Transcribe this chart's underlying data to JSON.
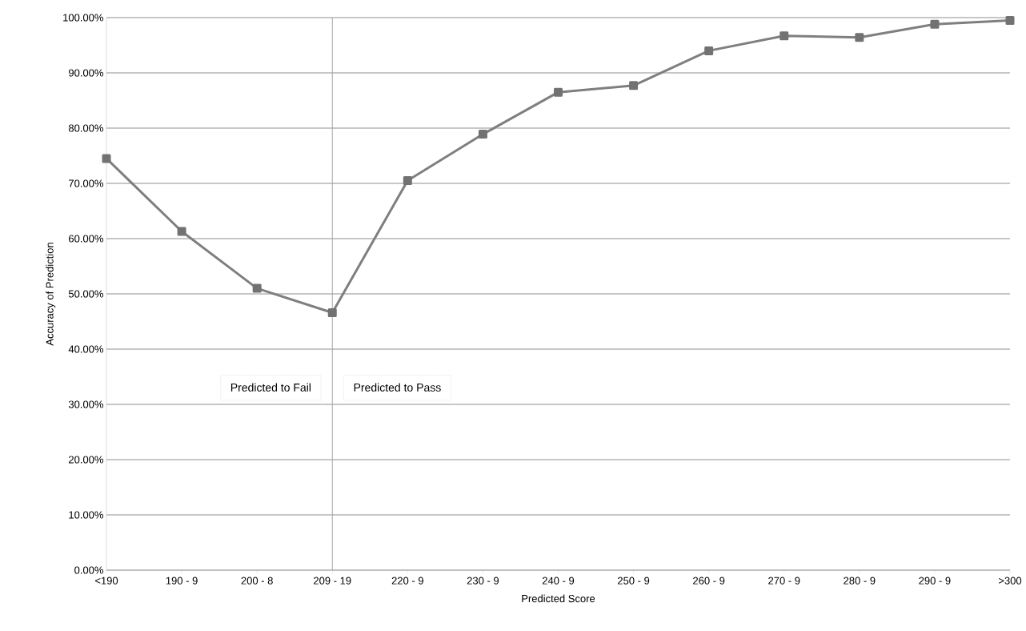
{
  "chart_data": {
    "type": "line",
    "xlabel": "Predicted Score",
    "ylabel": "Accuracy of Prediction",
    "categories": [
      "<190",
      "190 - 9",
      "200 - 8",
      "209 - 19",
      "220 - 9",
      "230 - 9",
      "240 - 9",
      "250 - 9",
      "260 - 9",
      "270 - 9",
      "280 - 9",
      "290 - 9",
      ">300"
    ],
    "series": [
      {
        "color": "#7f7f7f",
        "values": [
          74.5,
          61.3,
          51.0,
          46.6,
          70.5,
          78.9,
          86.5,
          87.7,
          94.0,
          96.7,
          96.4,
          98.8,
          99.5
        ]
      }
    ],
    "ylim": [
      0,
      100
    ],
    "yticks": [
      {
        "value": 0,
        "label": "0.00%"
      },
      {
        "value": 10,
        "label": "10.00%"
      },
      {
        "value": 20,
        "label": "20.00%"
      },
      {
        "value": 30,
        "label": "30.00%"
      },
      {
        "value": 40,
        "label": "40.00%"
      },
      {
        "value": 50,
        "label": "50.00%"
      },
      {
        "value": 60,
        "label": "60.00%"
      },
      {
        "value": 70,
        "label": "70.00%"
      },
      {
        "value": 80,
        "label": "80.00%"
      },
      {
        "value": 90,
        "label": "90.00%"
      },
      {
        "value": 100,
        "label": "100.00%"
      }
    ],
    "grid": "y",
    "marker": "square",
    "line_style": "solid",
    "ref_lines": [
      {
        "axis": "x",
        "value": "209 - 19",
        "color": "#a6a6a6"
      }
    ],
    "annotations": [
      "Predicted to Fail",
      "Predicted to Pass"
    ]
  }
}
